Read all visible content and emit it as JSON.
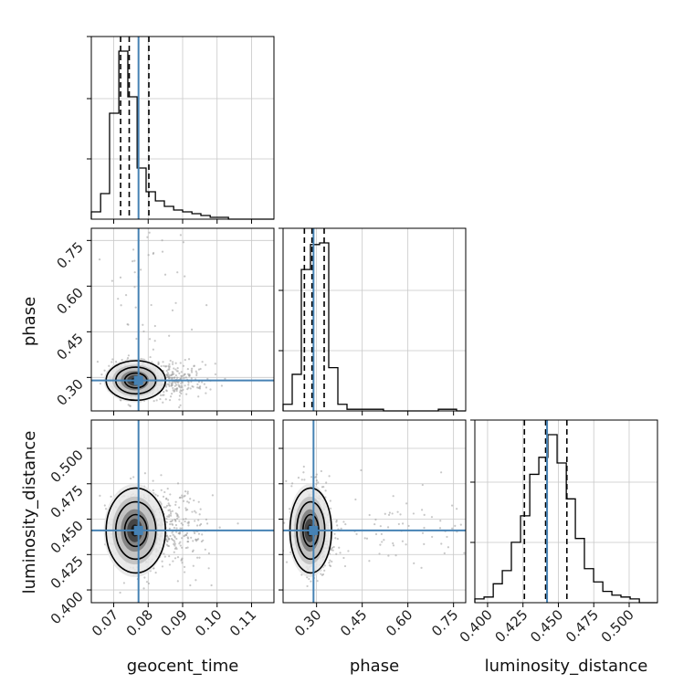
{
  "chart_data": {
    "type": "corner",
    "parameters": [
      "geocent_time",
      "phase",
      "luminosity_distance"
    ],
    "truths": {
      "geocent_time": 0.0772,
      "phase": 0.29,
      "luminosity_distance": 0.442
    },
    "quantiles": {
      "geocent_time": [
        0.072,
        0.0745,
        0.0802
      ],
      "phase": [
        0.26,
        0.285,
        0.325
      ],
      "luminosity_distance": [
        0.426,
        0.441,
        0.456
      ]
    },
    "ranges": {
      "geocent_time": [
        0.0635,
        0.1165
      ],
      "phase": [
        0.19,
        0.79
      ],
      "luminosity_distance": [
        0.391,
        0.52
      ]
    },
    "ticks": {
      "geocent_time": [
        "0.07",
        "0.08",
        "0.09",
        "0.10",
        "0.11"
      ],
      "phase": [
        "0.30",
        "0.45",
        "0.60",
        "0.75"
      ],
      "luminosity_distance": [
        "0.400",
        "0.425",
        "0.450",
        "0.475",
        "0.500"
      ]
    },
    "histograms": {
      "geocent_time": {
        "edges": [
          0.0635,
          0.0662,
          0.0688,
          0.0715,
          0.0741,
          0.0768,
          0.0794,
          0.0821,
          0.0847,
          0.0874,
          0.09,
          0.0927,
          0.0953,
          0.098,
          0.1006,
          0.1033,
          0.1059,
          0.1086,
          0.1112,
          0.1139,
          0.1165
        ],
        "counts": [
          4,
          14,
          58,
          92,
          67,
          28,
          15,
          10,
          7,
          5,
          4,
          3,
          2,
          1,
          1,
          0,
          0,
          0,
          0,
          0
        ]
      },
      "phase": {
        "edges": [
          0.19,
          0.22,
          0.25,
          0.28,
          0.31,
          0.34,
          0.37,
          0.4,
          0.43,
          0.46,
          0.49,
          0.52,
          0.55,
          0.58,
          0.61,
          0.64,
          0.67,
          0.7,
          0.73,
          0.76,
          0.79
        ],
        "counts": [
          4,
          22,
          85,
          100,
          101,
          26,
          4,
          1,
          1,
          1,
          1,
          0,
          0,
          0,
          0,
          0,
          0,
          1,
          1,
          0
        ]
      },
      "luminosity_distance": {
        "edges": [
          0.391,
          0.3975,
          0.404,
          0.4104,
          0.4168,
          0.4233,
          0.4298,
          0.4362,
          0.4426,
          0.4491,
          0.4556,
          0.462,
          0.4684,
          0.4749,
          0.4814,
          0.4878,
          0.4942,
          0.5007,
          0.5072,
          0.5136,
          0.52
        ],
        "counts": [
          2,
          3,
          10,
          17,
          32,
          46,
          68,
          77,
          89,
          74,
          55,
          34,
          18,
          11,
          6,
          4,
          3,
          2,
          0,
          0
        ]
      }
    },
    "grid": true
  }
}
